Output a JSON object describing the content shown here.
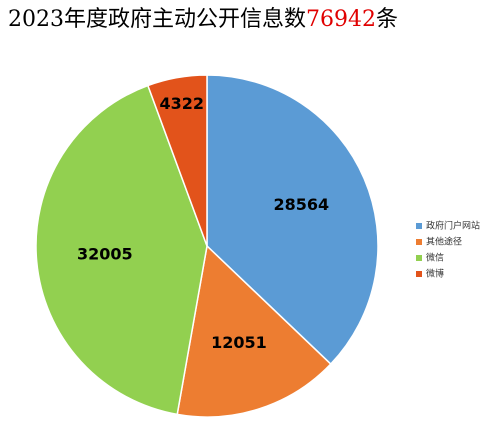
{
  "chart_data": {
    "type": "pie",
    "title": {
      "text": "2023年度政府主动公开信息数",
      "total": 76942,
      "unit": "条"
    },
    "categories": [
      "政府门户网站",
      "其他途径",
      "微信",
      "微博"
    ],
    "values": [
      28564,
      12051,
      32005,
      4322
    ],
    "colors": [
      "#5b9bd5",
      "#ed7d31",
      "#92d050",
      "#e2531b"
    ]
  }
}
